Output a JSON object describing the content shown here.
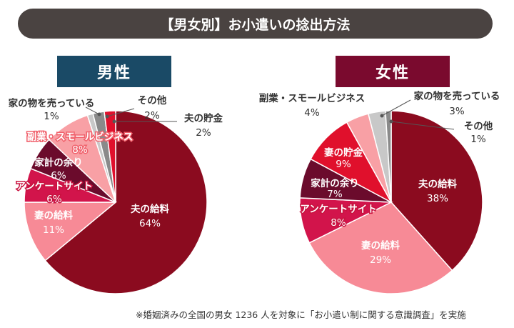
{
  "title": "【男女別】お小遣いの捻出方法",
  "footnote": "※婚姻済みの全国の男女 1236 人を対象に「お小遣い制に関する意識調査」を実施",
  "colors": {
    "husband_salary": "#8b0b1f",
    "wife_salary": "#f78a96",
    "survey_site": "#d2144b",
    "household_surplus": "#6b0b2c",
    "wife_savings": "#e0102c",
    "side_business": "#f8a0a5",
    "sell_items": "#c8c8c8",
    "other": "#8a8a8a"
  },
  "chart_data": [
    {
      "type": "pie",
      "title": "男性",
      "slices": [
        {
          "key": "husband_salary",
          "label": "夫の給料",
          "value": 64,
          "value_label": "64%"
        },
        {
          "key": "wife_salary",
          "label": "妻の給料",
          "value": 11,
          "value_label": "11%"
        },
        {
          "key": "survey_site",
          "label": "アンケートサイト",
          "value": 6,
          "value_label": "6%"
        },
        {
          "key": "household_surplus",
          "label": "家計の余り",
          "value": 6,
          "value_label": "6%"
        },
        {
          "key": "side_business",
          "label": "副業・スモールビジネス",
          "value": 8,
          "value_label": "8%"
        },
        {
          "key": "sell_items",
          "label": "家の物を売っている",
          "value": 1,
          "value_label": "1%"
        },
        {
          "key": "other",
          "label": "その他",
          "value": 2,
          "value_label": "2%"
        },
        {
          "key": "wife_savings",
          "label": "夫の貯金",
          "value": 2,
          "value_label": "2%"
        }
      ]
    },
    {
      "type": "pie",
      "title": "女性",
      "slices": [
        {
          "key": "husband_salary",
          "label": "夫の給料",
          "value": 38,
          "value_label": "38%"
        },
        {
          "key": "wife_salary",
          "label": "妻の給料",
          "value": 29,
          "value_label": "29%"
        },
        {
          "key": "survey_site",
          "label": "アンケートサイト",
          "value": 8,
          "value_label": "8%"
        },
        {
          "key": "household_surplus",
          "label": "家計の余り",
          "value": 7,
          "value_label": "7%"
        },
        {
          "key": "wife_savings",
          "label": "妻の貯金",
          "value": 9,
          "value_label": "9%"
        },
        {
          "key": "side_business",
          "label": "副業・スモールビジネス",
          "value": 4,
          "value_label": "4%"
        },
        {
          "key": "sell_items",
          "label": "家の物を売っている",
          "value": 3,
          "value_label": "3%"
        },
        {
          "key": "other",
          "label": "その他",
          "value": 1,
          "value_label": "1%"
        }
      ]
    }
  ]
}
